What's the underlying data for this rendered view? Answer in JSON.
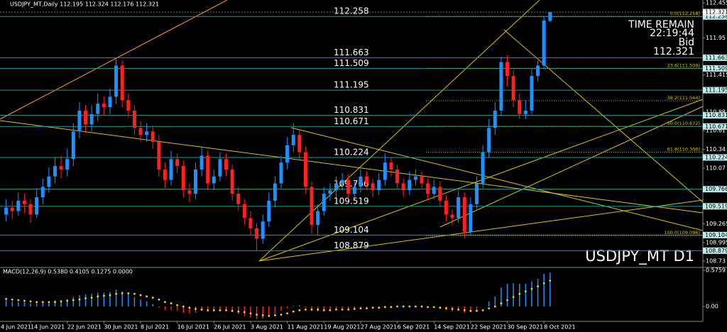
{
  "chart_data": {
    "type": "candlestick",
    "header": "USDJPY_MT,Daily  112.195 112.324 112.176 112.321",
    "symbol_label": "USDJPY_MT D1",
    "timer": {
      "title": "TIME REMAIN",
      "time": "22:19:44",
      "bid_label": "Bid",
      "bid": "112.321"
    },
    "up_color": "#1e90ff",
    "down_color": "#ff2020",
    "xlim": [
      -1,
      114
    ],
    "xticks": [
      {
        "value": -2,
        "label": "4 Jun 2021"
      },
      {
        "value": 4,
        "label": "14 Jun 2021"
      },
      {
        "value": 10,
        "label": "22 Jun 2021"
      },
      {
        "value": 16,
        "label": "30 Jun 2021"
      },
      {
        "value": 22,
        "label": "8 Jul 2021"
      },
      {
        "value": 28,
        "label": "16 Jul 2021"
      },
      {
        "value": 34,
        "label": "26 Jul 2021"
      },
      {
        "value": 40,
        "label": "3 Aug 2021"
      },
      {
        "value": 46,
        "label": "11 Aug 2021"
      },
      {
        "value": 52,
        "label": "19 Aug 2021"
      },
      {
        "value": 58,
        "label": "27 Aug 2021"
      },
      {
        "value": 64,
        "label": "6 Sep 2021"
      },
      {
        "value": 70,
        "label": "14 Sep 2021"
      },
      {
        "value": 76,
        "label": "22 Sep 2021"
      },
      {
        "value": 82,
        "label": "30 Sep 2021"
      },
      {
        "value": 88,
        "label": "8 Oct 2021"
      }
    ],
    "ylim": [
      108.647,
      112.496
    ],
    "yticks": [
      112.455,
      111.95,
      111.415,
      110.88,
      110.61,
      110.34,
      110.07,
      109.265,
      108.995,
      108.73
    ],
    "current_price": 112.321,
    "levels": [
      112.258,
      111.663,
      111.509,
      111.195,
      110.831,
      110.671,
      110.224,
      109.766,
      109.519,
      109.104,
      108.879
    ],
    "fib": [
      {
        "value": 112.258,
        "label": "0.0(112.258)"
      },
      {
        "value": 111.509,
        "label": "23.6(111.509)"
      },
      {
        "value": 111.044,
        "label": "38.2(111.044)"
      },
      {
        "value": 110.672,
        "label": "50.0(110.672)"
      },
      {
        "value": 110.3,
        "label": "61.8(110.300)"
      },
      {
        "value": 109.096,
        "label": "100.0(109.096)"
      }
    ],
    "ohlc": [
      [
        109.4,
        109.62,
        109.3,
        109.5
      ],
      [
        109.5,
        109.6,
        109.33,
        109.45
      ],
      [
        109.45,
        109.72,
        109.38,
        109.6
      ],
      [
        109.6,
        109.7,
        109.42,
        109.55
      ],
      [
        109.55,
        109.62,
        109.28,
        109.4
      ],
      [
        109.4,
        109.78,
        109.35,
        109.65
      ],
      [
        109.65,
        109.92,
        109.55,
        109.8
      ],
      [
        109.8,
        110.08,
        109.72,
        109.95
      ],
      [
        109.95,
        110.22,
        109.85,
        110.1
      ],
      [
        110.1,
        110.25,
        109.92,
        110.05
      ],
      [
        110.05,
        110.35,
        109.95,
        110.2
      ],
      [
        110.2,
        110.72,
        110.1,
        110.6
      ],
      [
        110.6,
        111.02,
        110.5,
        110.9
      ],
      [
        110.9,
        110.98,
        110.58,
        110.7
      ],
      [
        110.7,
        110.98,
        110.6,
        110.85
      ],
      [
        110.85,
        111.15,
        110.75,
        111.0
      ],
      [
        111.0,
        111.1,
        110.82,
        110.95
      ],
      [
        110.95,
        111.22,
        110.85,
        111.1
      ],
      [
        111.1,
        111.66,
        111.0,
        111.55
      ],
      [
        111.55,
        111.62,
        110.95,
        111.05
      ],
      [
        111.05,
        111.15,
        110.8,
        110.9
      ],
      [
        110.9,
        110.98,
        110.55,
        110.65
      ],
      [
        110.65,
        110.75,
        110.45,
        110.55
      ],
      [
        110.55,
        110.72,
        110.45,
        110.6
      ],
      [
        110.6,
        110.68,
        110.35,
        110.45
      ],
      [
        110.45,
        110.55,
        109.95,
        110.05
      ],
      [
        110.05,
        110.15,
        109.78,
        109.9
      ],
      [
        109.9,
        110.32,
        109.82,
        110.2
      ],
      [
        110.2,
        110.28,
        110.0,
        110.1
      ],
      [
        110.1,
        110.18,
        109.65,
        109.75
      ],
      [
        109.75,
        109.85,
        109.58,
        109.7
      ],
      [
        109.7,
        110.15,
        109.62,
        110.05
      ],
      [
        110.05,
        110.38,
        109.95,
        110.25
      ],
      [
        110.25,
        110.32,
        109.75,
        109.85
      ],
      [
        109.85,
        110.05,
        109.75,
        109.95
      ],
      [
        109.95,
        110.3,
        109.88,
        110.2
      ],
      [
        110.2,
        110.28,
        109.95,
        110.05
      ],
      [
        110.05,
        110.12,
        109.6,
        109.7
      ],
      [
        109.7,
        109.8,
        109.45,
        109.55
      ],
      [
        109.55,
        109.62,
        109.25,
        109.35
      ],
      [
        109.35,
        109.45,
        109.1,
        109.2
      ],
      [
        109.2,
        109.28,
        108.88,
        109.05
      ],
      [
        109.05,
        109.4,
        108.98,
        109.3
      ],
      [
        109.3,
        109.72,
        109.22,
        109.6
      ],
      [
        109.6,
        109.95,
        109.5,
        109.85
      ],
      [
        109.85,
        110.25,
        109.78,
        110.15
      ],
      [
        110.15,
        110.52,
        110.05,
        110.4
      ],
      [
        110.4,
        110.72,
        110.3,
        110.55
      ],
      [
        110.55,
        110.62,
        110.2,
        110.3
      ],
      [
        110.3,
        110.38,
        109.7,
        109.8
      ],
      [
        109.8,
        109.88,
        109.12,
        109.25
      ],
      [
        109.25,
        109.55,
        109.1,
        109.45
      ],
      [
        109.45,
        109.8,
        109.38,
        109.7
      ],
      [
        109.7,
        109.85,
        109.6,
        109.75
      ],
      [
        109.75,
        109.95,
        109.65,
        109.85
      ],
      [
        109.85,
        110.0,
        109.75,
        109.9
      ],
      [
        109.9,
        109.98,
        109.62,
        109.7
      ],
      [
        109.7,
        109.9,
        109.62,
        109.8
      ],
      [
        109.8,
        110.05,
        109.72,
        109.95
      ],
      [
        109.95,
        110.02,
        109.75,
        109.85
      ],
      [
        109.85,
        109.92,
        109.65,
        109.75
      ],
      [
        109.75,
        110.0,
        109.68,
        109.9
      ],
      [
        109.9,
        110.28,
        109.82,
        110.15
      ],
      [
        110.15,
        110.22,
        109.95,
        110.05
      ],
      [
        110.05,
        110.12,
        109.78,
        109.85
      ],
      [
        109.85,
        109.92,
        109.65,
        109.75
      ],
      [
        109.75,
        110.02,
        109.68,
        109.9
      ],
      [
        109.9,
        110.05,
        109.82,
        109.95
      ],
      [
        109.95,
        110.02,
        109.78,
        109.85
      ],
      [
        109.85,
        109.92,
        109.62,
        109.7
      ],
      [
        109.7,
        109.9,
        109.62,
        109.8
      ],
      [
        109.8,
        109.88,
        109.52,
        109.6
      ],
      [
        109.6,
        109.68,
        109.3,
        109.4
      ],
      [
        109.4,
        109.48,
        109.25,
        109.35
      ],
      [
        109.35,
        109.75,
        109.28,
        109.65
      ],
      [
        109.65,
        109.72,
        109.05,
        109.15
      ],
      [
        109.15,
        109.65,
        109.1,
        109.55
      ],
      [
        109.55,
        109.95,
        109.48,
        109.85
      ],
      [
        109.85,
        110.4,
        109.78,
        110.3
      ],
      [
        110.3,
        110.78,
        110.22,
        110.65
      ],
      [
        110.65,
        111.02,
        110.55,
        110.9
      ],
      [
        110.9,
        111.68,
        110.82,
        111.6
      ],
      [
        111.6,
        111.7,
        111.25,
        111.4
      ],
      [
        111.4,
        111.48,
        110.95,
        111.05
      ],
      [
        111.05,
        111.15,
        110.78,
        110.85
      ],
      [
        110.85,
        111.05,
        110.78,
        110.9
      ],
      [
        110.9,
        111.5,
        110.85,
        111.4
      ],
      [
        111.4,
        111.62,
        111.32,
        111.55
      ],
      [
        111.55,
        112.25,
        111.5,
        112.2
      ],
      [
        112.195,
        112.324,
        112.176,
        112.321
      ]
    ],
    "macd": {
      "header": "MACD(12,26,9) 0.5380 0.4105 0.1275 0.0000",
      "ylim": [
        -0.237,
        0.621
      ],
      "yticks": [
        0.5759,
        {
          "value": 0,
          "label": "0.00"
        }
      ],
      "up_color": "#1e90ff",
      "down_color": "#ff2020",
      "signal_color": "#ffd700",
      "main": [
        0.1,
        0.08,
        0.07,
        0.07,
        0.05,
        0.05,
        0.06,
        0.08,
        0.1,
        0.1,
        0.12,
        0.15,
        0.18,
        0.19,
        0.2,
        0.22,
        0.22,
        0.23,
        0.27,
        0.24,
        0.2,
        0.15,
        0.11,
        0.08,
        0.04,
        -0.02,
        -0.06,
        -0.06,
        -0.07,
        -0.1,
        -0.11,
        -0.1,
        -0.07,
        -0.08,
        -0.08,
        -0.06,
        -0.06,
        -0.09,
        -0.12,
        -0.15,
        -0.18,
        -0.2,
        -0.19,
        -0.16,
        -0.12,
        -0.07,
        -0.03,
        0.01,
        0.02,
        -0.02,
        -0.07,
        -0.08,
        -0.07,
        -0.06,
        -0.04,
        -0.03,
        -0.04,
        -0.03,
        -0.01,
        -0.01,
        -0.02,
        -0.01,
        0.01,
        0.01,
        0.0,
        -0.01,
        -0.01,
        0.0,
        -0.01,
        -0.02,
        -0.02,
        -0.04,
        -0.06,
        -0.08,
        -0.07,
        -0.1,
        -0.09,
        -0.06,
        0.0,
        0.08,
        0.16,
        0.3,
        0.36,
        0.37,
        0.36,
        0.36,
        0.4,
        0.44,
        0.52,
        0.538
      ],
      "signal": [
        0.12,
        0.11,
        0.1,
        0.09,
        0.08,
        0.07,
        0.07,
        0.07,
        0.07,
        0.08,
        0.09,
        0.1,
        0.11,
        0.13,
        0.14,
        0.16,
        0.17,
        0.18,
        0.2,
        0.21,
        0.21,
        0.2,
        0.18,
        0.16,
        0.14,
        0.11,
        0.07,
        0.05,
        0.02,
        0.0,
        -0.02,
        -0.04,
        -0.05,
        -0.06,
        -0.06,
        -0.06,
        -0.06,
        -0.07,
        -0.08,
        -0.09,
        -0.11,
        -0.13,
        -0.14,
        -0.15,
        -0.14,
        -0.13,
        -0.11,
        -0.08,
        -0.06,
        -0.05,
        -0.05,
        -0.05,
        -0.06,
        -0.06,
        -0.05,
        -0.05,
        -0.05,
        -0.04,
        -0.03,
        -0.03,
        -0.02,
        -0.02,
        -0.01,
        -0.01,
        0.0,
        0.0,
        0.0,
        0.0,
        0.0,
        -0.01,
        -0.01,
        -0.02,
        -0.03,
        -0.04,
        -0.05,
        -0.06,
        -0.07,
        -0.07,
        -0.06,
        -0.03,
        0.0,
        0.05,
        0.1,
        0.15,
        0.2,
        0.24,
        0.28,
        0.32,
        0.37,
        0.4105
      ]
    }
  }
}
